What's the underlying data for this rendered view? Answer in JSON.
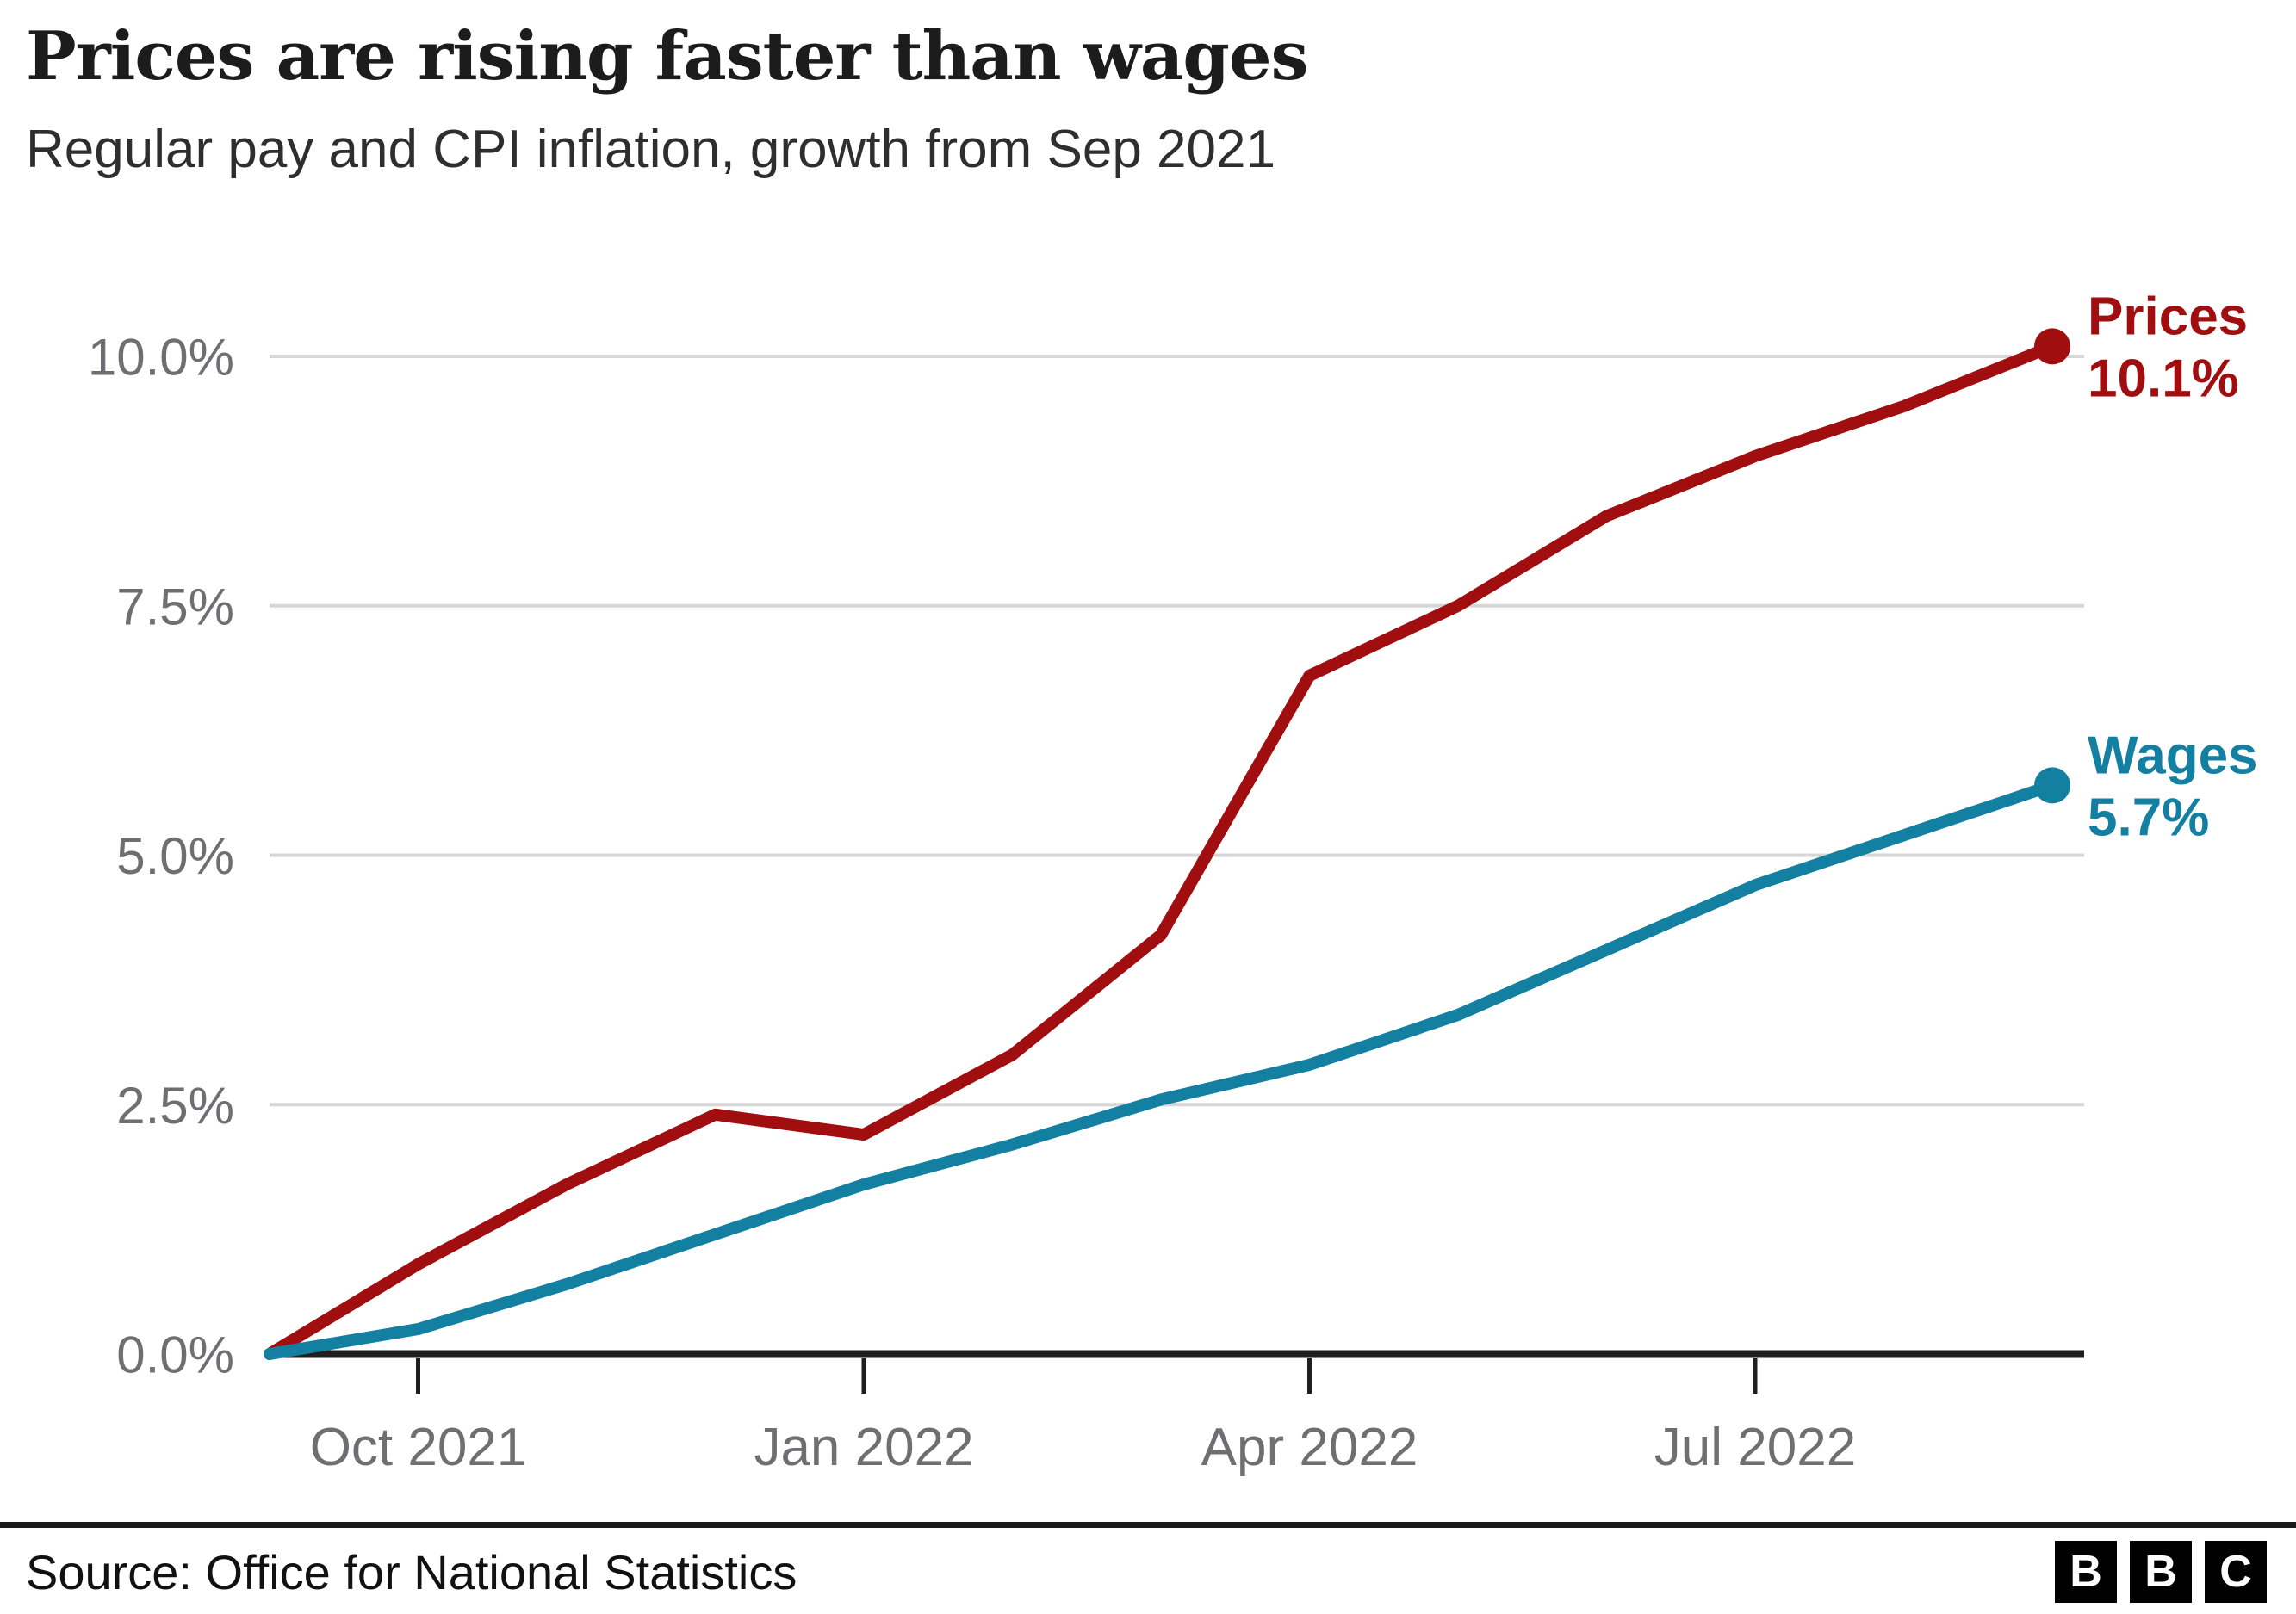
{
  "header": {
    "title": "Prices are rising faster than wages",
    "subtitle": "Regular pay and CPI inflation, growth from Sep 2021"
  },
  "chart_data": {
    "type": "line",
    "title": "Prices are rising faster than wages",
    "subtitle": "Regular pay and CPI inflation, growth from Sep 2021",
    "x": [
      "Sep 2021",
      "Oct 2021",
      "Nov 2021",
      "Dec 2021",
      "Jan 2022",
      "Feb 2022",
      "Mar 2022",
      "Apr 2022",
      "May 2022",
      "Jun 2022",
      "Jul 2022",
      "Aug 2022",
      "Sep 2022"
    ],
    "series": [
      {
        "name": "Prices",
        "color": "#a10e10",
        "end_label": "Prices",
        "end_value_label": "10.1%",
        "values": [
          0,
          0.9,
          1.7,
          2.4,
          2.2,
          3.0,
          4.2,
          6.8,
          7.5,
          8.4,
          9.0,
          9.5,
          10.1
        ]
      },
      {
        "name": "Wages",
        "color": "#1380a1",
        "end_label": "Wages",
        "end_value_label": "5.7%",
        "values": [
          0,
          0.25,
          0.7,
          1.2,
          1.7,
          2.1,
          2.55,
          2.9,
          3.4,
          4.05,
          4.7,
          5.2,
          5.7
        ]
      }
    ],
    "y_ticks": [
      {
        "value": 0.0,
        "label": "0.0%"
      },
      {
        "value": 2.5,
        "label": "2.5%"
      },
      {
        "value": 5.0,
        "label": "5.0%"
      },
      {
        "value": 7.5,
        "label": "7.5%"
      },
      {
        "value": 10.0,
        "label": "10.0%"
      }
    ],
    "x_ticks": [
      {
        "month_index": 1,
        "label": "Oct 2021"
      },
      {
        "month_index": 4,
        "label": "Jan 2022"
      },
      {
        "month_index": 7,
        "label": "Apr 2022"
      },
      {
        "month_index": 10,
        "label": "Jul 2022"
      }
    ],
    "ylim": [
      0,
      10.5
    ],
    "grid": "horizontal",
    "legend_position": "end-of-line-labels",
    "colors": {
      "grid": "#d6d6d6",
      "axis": "#1f1f1f",
      "tick_label": "#6e6e73"
    }
  },
  "footer": {
    "source": "Source: Office for National Statistics",
    "logo": {
      "letters": [
        "B",
        "B",
        "C"
      ]
    }
  }
}
